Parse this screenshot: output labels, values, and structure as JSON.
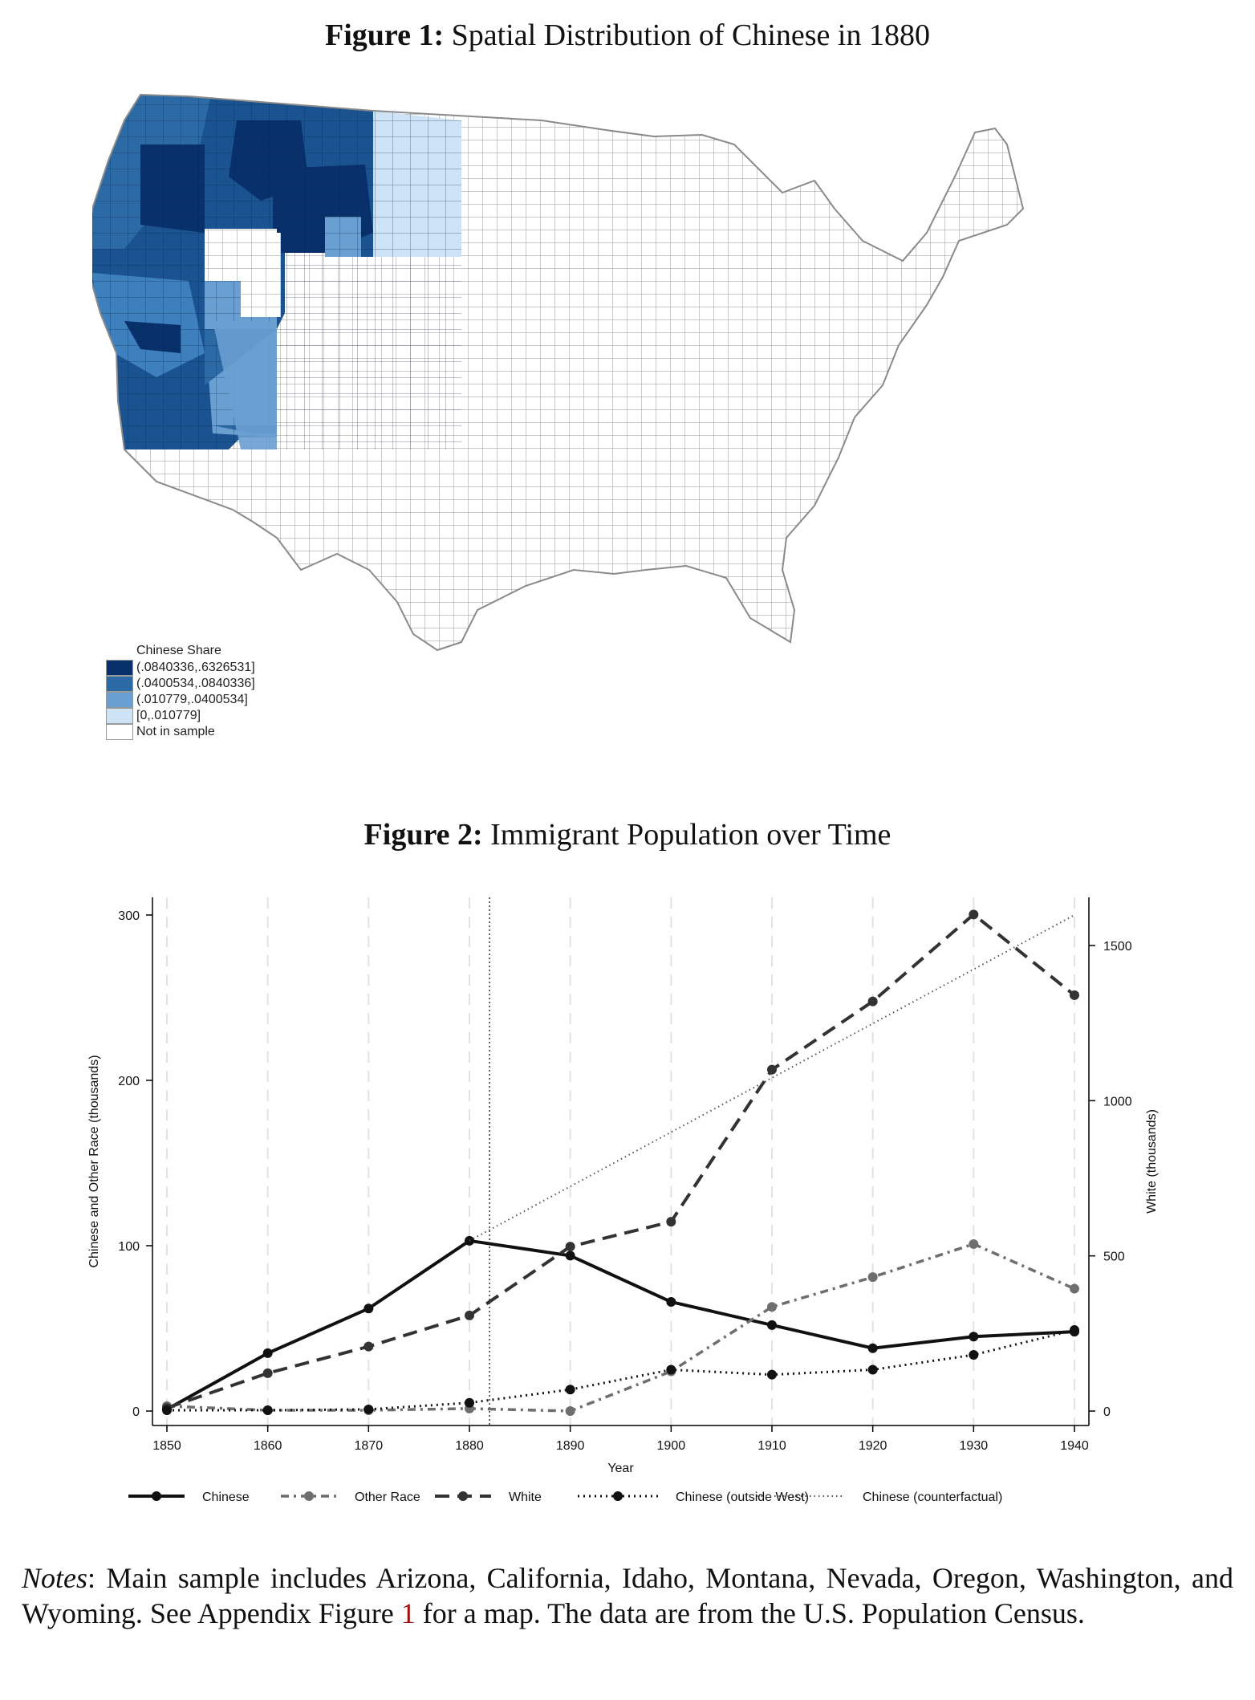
{
  "figure1": {
    "label": "Figure 1:",
    "title": "Spatial Distribution of Chinese in 1880",
    "legend": {
      "title": "Chinese Share",
      "items": [
        {
          "label": "(.0840336,.6326531]",
          "color": "#08306b"
        },
        {
          "label": "(.0400534,.0840336]",
          "color": "#2c6aa6"
        },
        {
          "label": "(.010779,.0400534]",
          "color": "#6a9fd2"
        },
        {
          "label": "[0,.010779]",
          "color": "#cfe3f7"
        },
        {
          "label": "Not in sample",
          "color": "#ffffff"
        }
      ]
    }
  },
  "figure2": {
    "label": "Figure 2:",
    "title": "Immigrant Population over Time"
  },
  "chart_data": {
    "type": "line",
    "x": [
      1850,
      1860,
      1870,
      1880,
      1890,
      1900,
      1910,
      1920,
      1930,
      1940
    ],
    "xlabel": "Year",
    "ylabel_left": "Chinese and Other Race (thousands)",
    "ylabel_right": "White (thousands)",
    "ylim_left": [
      0,
      310
    ],
    "ylim_right": [
      0,
      1650
    ],
    "yticks_left": [
      0,
      100,
      200,
      300
    ],
    "yticks_right": [
      0,
      500,
      1000,
      1500
    ],
    "reference_line_x": 1882,
    "grid": "vertical dashed at each decade",
    "legend_position": "bottom",
    "series": [
      {
        "name": "Chinese",
        "axis": "left",
        "style": "solid",
        "color": "#111111",
        "values": [
          1,
          35,
          62,
          103,
          94,
          66,
          52,
          38,
          45,
          48
        ]
      },
      {
        "name": "Other Race",
        "axis": "left",
        "style": "dashdot",
        "color": "#6e6e6e",
        "values": [
          3,
          0.5,
          0.5,
          1.5,
          0,
          24,
          63,
          81,
          101,
          74
        ]
      },
      {
        "name": "White",
        "axis": "right",
        "style": "dashed",
        "color": "#333333",
        "values": [
          10,
          122,
          208,
          308,
          530,
          610,
          1100,
          1320,
          1600,
          1340
        ]
      },
      {
        "name": "Chinese (outside West)",
        "axis": "left",
        "style": "dotted",
        "color": "#111111",
        "values": [
          0.5,
          0.5,
          1,
          5,
          13,
          25,
          22,
          25,
          34,
          49
        ]
      },
      {
        "name": "Chinese (counterfactual)",
        "axis": "left",
        "style": "dotted-thin",
        "color": "#555555",
        "values": [
          null,
          null,
          null,
          103,
          null,
          null,
          null,
          null,
          null,
          300
        ]
      }
    ]
  },
  "notes": {
    "label": "Notes",
    "text_a": "Main sample includes Arizona, California, Idaho, Montana, Nevada, Oregon, Washington, and Wyoming. See Appendix Figure",
    "ref": "1",
    "text_b": "for a map. The data are from the U.S. Population Census."
  }
}
